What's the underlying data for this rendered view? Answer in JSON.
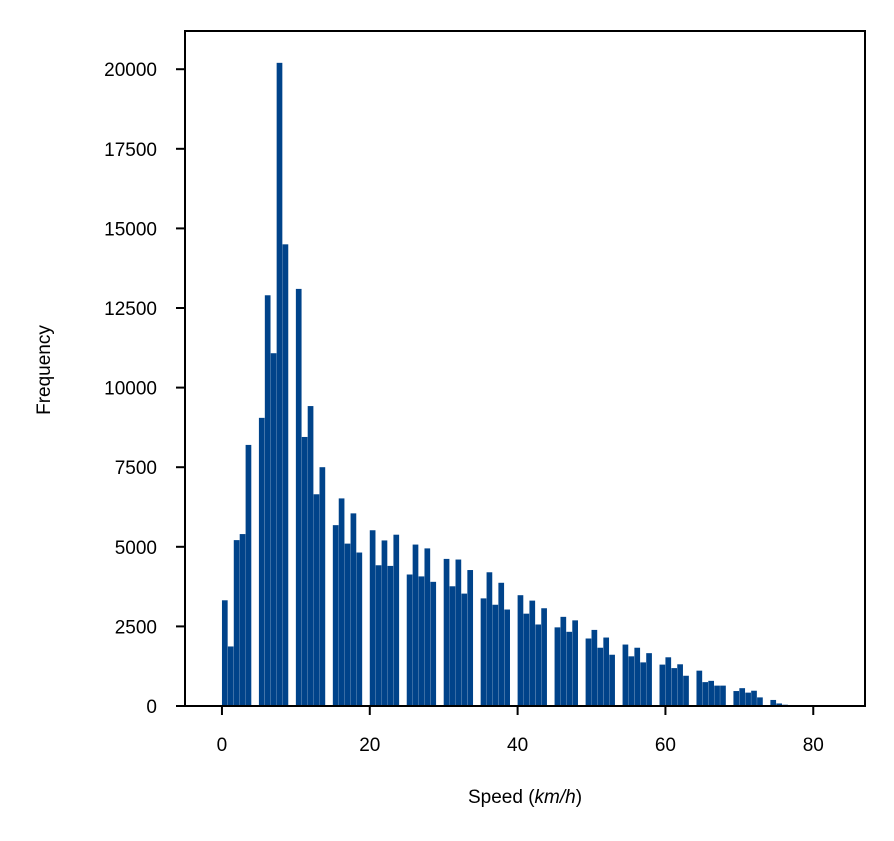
{
  "chart_data": {
    "type": "bar",
    "title": "",
    "xlabel_prefix": "Speed (",
    "xlabel_unit": "km/h",
    "xlabel_suffix": ")",
    "ylabel": "Frequency",
    "xlim": [
      -5,
      87
    ],
    "ylim": [
      0,
      21200
    ],
    "xticks": [
      0,
      20,
      40,
      60,
      80
    ],
    "yticks": [
      0,
      2500,
      5000,
      7500,
      10000,
      12500,
      15000,
      17500,
      20000
    ],
    "grid": false,
    "legend": "none",
    "bar_color": "#00438a",
    "bin_width": 0.77,
    "bins": [
      {
        "x": 0.0,
        "y": 3320
      },
      {
        "x": 0.8,
        "y": 1870
      },
      {
        "x": 1.6,
        "y": 5210
      },
      {
        "x": 2.4,
        "y": 5400
      },
      {
        "x": 3.2,
        "y": 8200
      },
      {
        "x": 5.0,
        "y": 9050
      },
      {
        "x": 5.8,
        "y": 12900
      },
      {
        "x": 6.6,
        "y": 11080
      },
      {
        "x": 7.4,
        "y": 20200
      },
      {
        "x": 8.2,
        "y": 14500
      },
      {
        "x": 10.0,
        "y": 13100
      },
      {
        "x": 10.8,
        "y": 8450
      },
      {
        "x": 11.6,
        "y": 9420
      },
      {
        "x": 12.4,
        "y": 6650
      },
      {
        "x": 13.2,
        "y": 7500
      },
      {
        "x": 15.0,
        "y": 5680
      },
      {
        "x": 15.8,
        "y": 6520
      },
      {
        "x": 16.6,
        "y": 5100
      },
      {
        "x": 17.4,
        "y": 6050
      },
      {
        "x": 18.2,
        "y": 4820
      },
      {
        "x": 20.0,
        "y": 5520
      },
      {
        "x": 20.8,
        "y": 4420
      },
      {
        "x": 21.6,
        "y": 5200
      },
      {
        "x": 22.4,
        "y": 4400
      },
      {
        "x": 23.2,
        "y": 5380
      },
      {
        "x": 25.0,
        "y": 4130
      },
      {
        "x": 25.8,
        "y": 5070
      },
      {
        "x": 26.6,
        "y": 4070
      },
      {
        "x": 27.4,
        "y": 4950
      },
      {
        "x": 28.2,
        "y": 3900
      },
      {
        "x": 30.0,
        "y": 4620
      },
      {
        "x": 30.8,
        "y": 3760
      },
      {
        "x": 31.6,
        "y": 4600
      },
      {
        "x": 32.4,
        "y": 3530
      },
      {
        "x": 33.2,
        "y": 4270
      },
      {
        "x": 35.0,
        "y": 3380
      },
      {
        "x": 35.8,
        "y": 4200
      },
      {
        "x": 36.6,
        "y": 3180
      },
      {
        "x": 37.4,
        "y": 3870
      },
      {
        "x": 38.2,
        "y": 3030
      },
      {
        "x": 40.0,
        "y": 3480
      },
      {
        "x": 40.8,
        "y": 2900
      },
      {
        "x": 41.6,
        "y": 3310
      },
      {
        "x": 42.4,
        "y": 2560
      },
      {
        "x": 43.2,
        "y": 3070
      },
      {
        "x": 45.0,
        "y": 2470
      },
      {
        "x": 45.8,
        "y": 2800
      },
      {
        "x": 46.6,
        "y": 2330
      },
      {
        "x": 47.4,
        "y": 2690
      },
      {
        "x": 49.2,
        "y": 2120
      },
      {
        "x": 50.0,
        "y": 2390
      },
      {
        "x": 50.8,
        "y": 1830
      },
      {
        "x": 51.6,
        "y": 2150
      },
      {
        "x": 52.4,
        "y": 1610
      },
      {
        "x": 54.2,
        "y": 1930
      },
      {
        "x": 55.0,
        "y": 1560
      },
      {
        "x": 55.8,
        "y": 1830
      },
      {
        "x": 56.6,
        "y": 1370
      },
      {
        "x": 57.4,
        "y": 1660
      },
      {
        "x": 59.2,
        "y": 1300
      },
      {
        "x": 60.0,
        "y": 1530
      },
      {
        "x": 60.8,
        "y": 1190
      },
      {
        "x": 61.6,
        "y": 1310
      },
      {
        "x": 62.4,
        "y": 950
      },
      {
        "x": 64.2,
        "y": 1110
      },
      {
        "x": 65.0,
        "y": 750
      },
      {
        "x": 65.8,
        "y": 790
      },
      {
        "x": 66.6,
        "y": 640
      },
      {
        "x": 67.4,
        "y": 640
      },
      {
        "x": 69.2,
        "y": 470
      },
      {
        "x": 70.0,
        "y": 560
      },
      {
        "x": 70.8,
        "y": 420
      },
      {
        "x": 71.6,
        "y": 480
      },
      {
        "x": 72.4,
        "y": 270
      },
      {
        "x": 74.2,
        "y": 190
      },
      {
        "x": 75.0,
        "y": 80
      },
      {
        "x": 75.8,
        "y": 40
      },
      {
        "x": 76.6,
        "y": 25
      },
      {
        "x": 77.4,
        "y": 15
      },
      {
        "x": 79.2,
        "y": 8
      },
      {
        "x": 80.0,
        "y": 5
      },
      {
        "x": 80.8,
        "y": 4
      },
      {
        "x": 81.6,
        "y": 3
      },
      {
        "x": 82.4,
        "y": 2
      }
    ]
  }
}
